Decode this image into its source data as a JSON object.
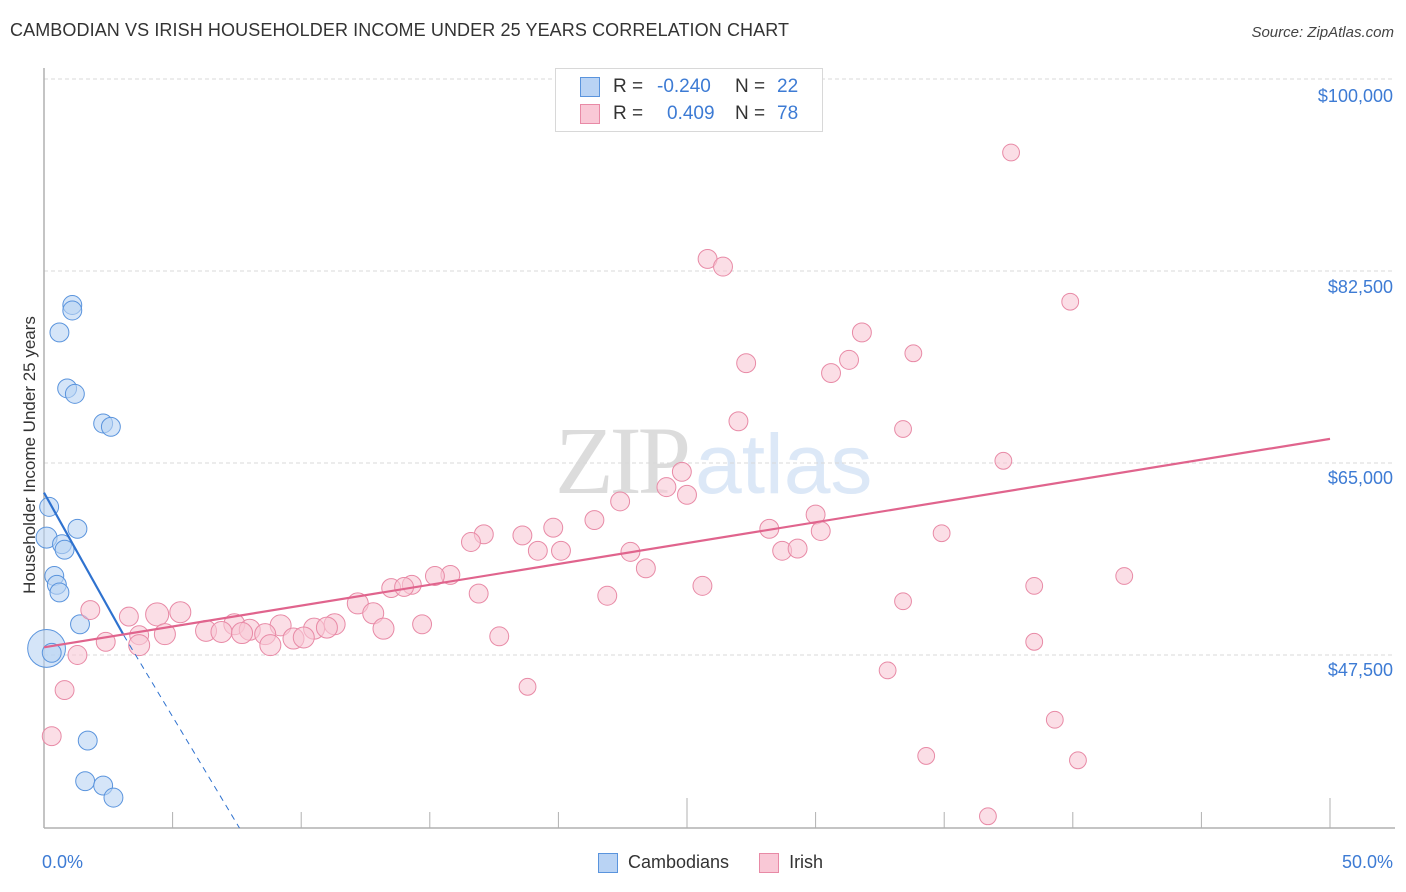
{
  "header": {
    "title": "CAMBODIAN VS IRISH HOUSEHOLDER INCOME UNDER 25 YEARS CORRELATION CHART",
    "source": "Source: ZipAtlas.com"
  },
  "watermark": {
    "zip": "ZIP",
    "atlas": "atlas"
  },
  "colors": {
    "cambodians_fill": "#b9d3f4",
    "cambodians_stroke": "#5a94dd",
    "cambodians_line": "#2f72cf",
    "irish_fill": "#f9c8d6",
    "irish_stroke": "#e88aa6",
    "irish_line": "#e0648d",
    "tick_label": "#3d7bd4",
    "grid": "#d9d9d9"
  },
  "legend": {
    "rows": [
      {
        "series": "Cambodians",
        "r_label": "R =",
        "r_value": "-0.240",
        "n_label": "N =",
        "n_value": "22"
      },
      {
        "series": "Irish",
        "r_label": "R =",
        "r_value": "0.409",
        "n_label": "N =",
        "n_value": "78"
      }
    ]
  },
  "bottom_legend": [
    {
      "label": "Cambodians"
    },
    {
      "label": "Irish"
    }
  ],
  "axes": {
    "ylabel": "Householder Income Under 25 years",
    "y_ticks": [
      "$100,000",
      "$82,500",
      "$65,000",
      "$47,500"
    ],
    "x_ticks": [
      "0.0%",
      "50.0%"
    ]
  },
  "chart_data": {
    "type": "scatter",
    "title": "CAMBODIAN VS IRISH HOUSEHOLDER INCOME UNDER 25 YEARS CORRELATION CHART",
    "xlabel": "",
    "ylabel": "Householder Income Under 25 years",
    "xlim": [
      0,
      50
    ],
    "ylim": [
      31500,
      101500
    ],
    "x_unit": "%",
    "y_ticks": [
      47500,
      65000,
      82500,
      100000
    ],
    "x_ticks_labeled": [
      0,
      50
    ],
    "x_minor_ticks": [
      0,
      5,
      10,
      15,
      20,
      25,
      30,
      35,
      40,
      45,
      50
    ],
    "grid": "horizontal dashed",
    "legend_position": "top-center and bottom-center",
    "series": [
      {
        "name": "Cambodians",
        "r": -0.24,
        "n": 22,
        "trend": {
          "x0": 0.0,
          "y0": 62300,
          "x1": 3.1,
          "y1": 49300,
          "dashed_extension_to": [
            7.6,
            30900
          ]
        },
        "points": [
          {
            "x": 1.1,
            "y": 79400,
            "s": 9
          },
          {
            "x": 1.1,
            "y": 78900,
            "s": 9
          },
          {
            "x": 0.6,
            "y": 76900,
            "s": 9
          },
          {
            "x": 0.9,
            "y": 71800,
            "s": 9
          },
          {
            "x": 1.2,
            "y": 71300,
            "s": 9
          },
          {
            "x": 2.3,
            "y": 68600,
            "s": 9
          },
          {
            "x": 2.6,
            "y": 68300,
            "s": 9
          },
          {
            "x": 0.2,
            "y": 61000,
            "s": 9
          },
          {
            "x": 1.3,
            "y": 59000,
            "s": 9
          },
          {
            "x": 0.1,
            "y": 58200,
            "s": 10
          },
          {
            "x": 0.7,
            "y": 57600,
            "s": 9
          },
          {
            "x": 0.8,
            "y": 57100,
            "s": 9
          },
          {
            "x": 0.4,
            "y": 54700,
            "s": 9
          },
          {
            "x": 0.5,
            "y": 53900,
            "s": 9
          },
          {
            "x": 0.6,
            "y": 53200,
            "s": 9
          },
          {
            "x": 1.4,
            "y": 50300,
            "s": 9
          },
          {
            "x": 0.1,
            "y": 48100,
            "s": 18
          },
          {
            "x": 1.7,
            "y": 39700,
            "s": 9
          },
          {
            "x": 1.6,
            "y": 36000,
            "s": 9
          },
          {
            "x": 2.3,
            "y": 35600,
            "s": 9
          },
          {
            "x": 2.7,
            "y": 34500,
            "s": 9
          },
          {
            "x": 0.3,
            "y": 47700,
            "s": 9
          }
        ]
      },
      {
        "name": "Irish",
        "r": 0.409,
        "n": 78,
        "trend": {
          "x0": 0.0,
          "y0": 48200,
          "x1": 50.0,
          "y1": 67200
        },
        "points": [
          {
            "x": 37.6,
            "y": 93300,
            "s": 8
          },
          {
            "x": 25.8,
            "y": 83600,
            "s": 9
          },
          {
            "x": 26.4,
            "y": 82900,
            "s": 9
          },
          {
            "x": 39.9,
            "y": 79700,
            "s": 8
          },
          {
            "x": 31.8,
            "y": 76900,
            "s": 9
          },
          {
            "x": 27.3,
            "y": 74100,
            "s": 9
          },
          {
            "x": 30.6,
            "y": 73200,
            "s": 9
          },
          {
            "x": 31.3,
            "y": 74400,
            "s": 9
          },
          {
            "x": 33.8,
            "y": 75000,
            "s": 8
          },
          {
            "x": 27.0,
            "y": 68800,
            "s": 9
          },
          {
            "x": 33.4,
            "y": 68100,
            "s": 8
          },
          {
            "x": 37.3,
            "y": 65200,
            "s": 8
          },
          {
            "x": 24.8,
            "y": 64200,
            "s": 9
          },
          {
            "x": 24.2,
            "y": 62800,
            "s": 9
          },
          {
            "x": 25.0,
            "y": 62100,
            "s": 9
          },
          {
            "x": 22.4,
            "y": 61500,
            "s": 9
          },
          {
            "x": 30.0,
            "y": 60300,
            "s": 9
          },
          {
            "x": 21.4,
            "y": 59800,
            "s": 9
          },
          {
            "x": 28.2,
            "y": 59000,
            "s": 9
          },
          {
            "x": 30.2,
            "y": 58800,
            "s": 9
          },
          {
            "x": 19.8,
            "y": 59100,
            "s": 9
          },
          {
            "x": 18.6,
            "y": 58400,
            "s": 9
          },
          {
            "x": 17.1,
            "y": 58500,
            "s": 9
          },
          {
            "x": 16.6,
            "y": 57800,
            "s": 9
          },
          {
            "x": 34.9,
            "y": 58600,
            "s": 8
          },
          {
            "x": 19.2,
            "y": 57000,
            "s": 9
          },
          {
            "x": 20.1,
            "y": 57000,
            "s": 9
          },
          {
            "x": 22.8,
            "y": 56900,
            "s": 9
          },
          {
            "x": 28.7,
            "y": 57000,
            "s": 9
          },
          {
            "x": 29.3,
            "y": 57200,
            "s": 9
          },
          {
            "x": 23.4,
            "y": 55400,
            "s": 9
          },
          {
            "x": 15.8,
            "y": 54800,
            "s": 9
          },
          {
            "x": 15.2,
            "y": 54700,
            "s": 9
          },
          {
            "x": 14.3,
            "y": 53900,
            "s": 9
          },
          {
            "x": 13.5,
            "y": 53600,
            "s": 9
          },
          {
            "x": 14.0,
            "y": 53700,
            "s": 9
          },
          {
            "x": 25.6,
            "y": 53800,
            "s": 9
          },
          {
            "x": 42.0,
            "y": 54700,
            "s": 8
          },
          {
            "x": 38.5,
            "y": 53800,
            "s": 8
          },
          {
            "x": 16.9,
            "y": 53100,
            "s": 9
          },
          {
            "x": 21.9,
            "y": 52900,
            "s": 9
          },
          {
            "x": 33.4,
            "y": 52400,
            "s": 8
          },
          {
            "x": 12.2,
            "y": 52200,
            "s": 10
          },
          {
            "x": 12.8,
            "y": 51300,
            "s": 10
          },
          {
            "x": 1.8,
            "y": 51600,
            "s": 9
          },
          {
            "x": 3.3,
            "y": 51000,
            "s": 9
          },
          {
            "x": 4.4,
            "y": 51200,
            "s": 11
          },
          {
            "x": 5.3,
            "y": 51400,
            "s": 10
          },
          {
            "x": 7.4,
            "y": 50300,
            "s": 10
          },
          {
            "x": 9.2,
            "y": 50200,
            "s": 10
          },
          {
            "x": 11.3,
            "y": 50300,
            "s": 10
          },
          {
            "x": 14.7,
            "y": 50300,
            "s": 9
          },
          {
            "x": 3.7,
            "y": 49300,
            "s": 9
          },
          {
            "x": 4.7,
            "y": 49400,
            "s": 10
          },
          {
            "x": 6.3,
            "y": 49700,
            "s": 10
          },
          {
            "x": 6.9,
            "y": 49600,
            "s": 10
          },
          {
            "x": 8.0,
            "y": 49800,
            "s": 10
          },
          {
            "x": 10.5,
            "y": 49900,
            "s": 10
          },
          {
            "x": 11.0,
            "y": 50000,
            "s": 10
          },
          {
            "x": 13.2,
            "y": 49900,
            "s": 10
          },
          {
            "x": 7.7,
            "y": 49500,
            "s": 10
          },
          {
            "x": 8.6,
            "y": 49400,
            "s": 10
          },
          {
            "x": 9.7,
            "y": 49000,
            "s": 10
          },
          {
            "x": 10.1,
            "y": 49100,
            "s": 10
          },
          {
            "x": 17.7,
            "y": 49200,
            "s": 9
          },
          {
            "x": 2.4,
            "y": 48700,
            "s": 9
          },
          {
            "x": 3.7,
            "y": 48400,
            "s": 10
          },
          {
            "x": 8.8,
            "y": 48400,
            "s": 10
          },
          {
            "x": 1.3,
            "y": 47500,
            "s": 9
          },
          {
            "x": 38.5,
            "y": 48700,
            "s": 8
          },
          {
            "x": 32.8,
            "y": 46100,
            "s": 8
          },
          {
            "x": 18.8,
            "y": 44600,
            "s": 8
          },
          {
            "x": 0.8,
            "y": 44300,
            "s": 9
          },
          {
            "x": 39.3,
            "y": 41600,
            "s": 8
          },
          {
            "x": 0.3,
            "y": 40100,
            "s": 9
          },
          {
            "x": 34.3,
            "y": 38300,
            "s": 8
          },
          {
            "x": 40.2,
            "y": 37900,
            "s": 8
          },
          {
            "x": 36.7,
            "y": 32800,
            "s": 8
          }
        ]
      }
    ]
  }
}
